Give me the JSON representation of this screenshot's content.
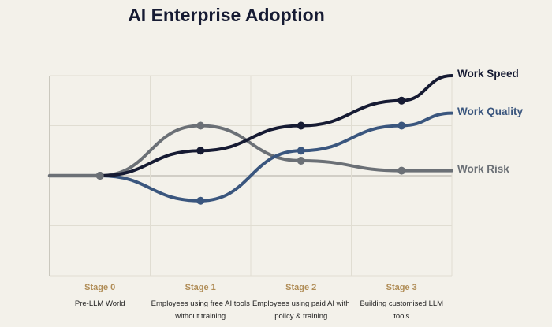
{
  "chart_data": {
    "type": "line",
    "title": "AI Enterprise Adoption",
    "xlabel": "",
    "ylabel": "",
    "grid": true,
    "legend": "right-end-labels",
    "categories": [
      "Stage 0",
      "Stage 1",
      "Stage 2",
      "Stage 3"
    ],
    "category_descriptions": [
      "Pre-LLM World",
      "Employees using free AI tools without training",
      "Employees using paid AI with policy & training",
      "Building customised LLM tools"
    ],
    "ylim": [
      -2,
      2
    ],
    "x_range": [
      -0.5,
      3.5
    ],
    "baseline_start": {
      "x": -0.5,
      "y": 0
    },
    "series": [
      {
        "name": "Work Speed",
        "color": "#161b33",
        "values": [
          0,
          0.5,
          1.0,
          1.5
        ],
        "end": 2.0
      },
      {
        "name": "Work Quality",
        "color": "#3a567e",
        "values": [
          0,
          -0.5,
          0.5,
          1.0
        ],
        "end": 1.25
      },
      {
        "name": "Work Risk",
        "color": "#6b7076",
        "values": [
          0,
          1.0,
          0.3,
          0.1
        ],
        "end": 0.1
      }
    ]
  }
}
